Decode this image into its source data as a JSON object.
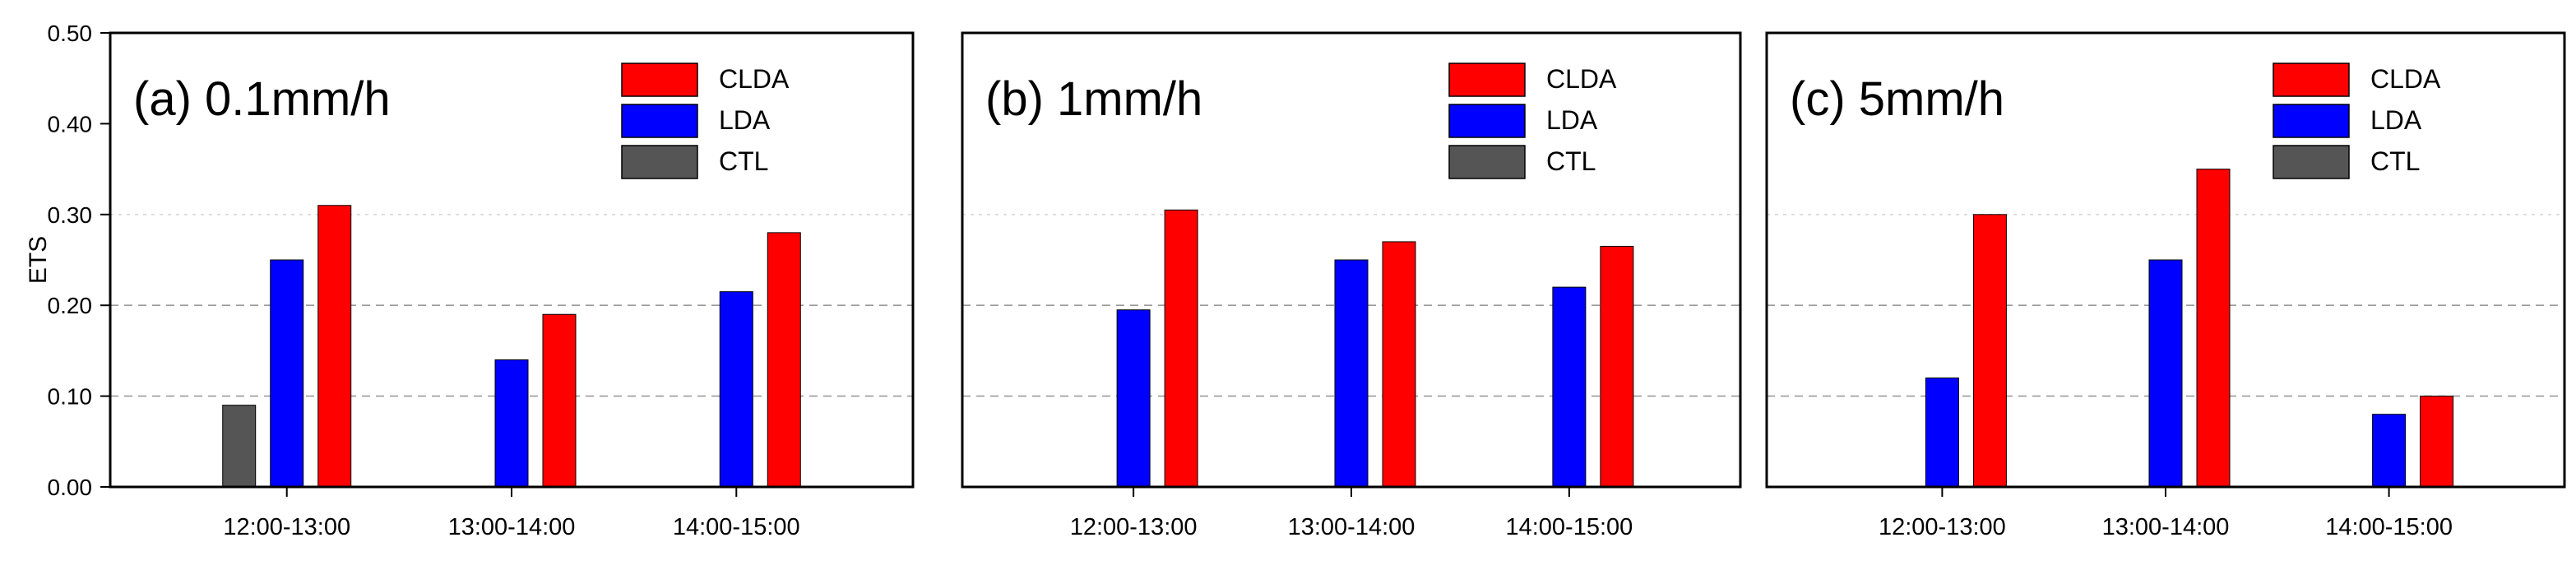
{
  "chart_data": [
    {
      "type": "bar",
      "panel_title": "(a) 0.1mm/h",
      "ylabel": "ETS",
      "ylim": [
        0,
        0.5
      ],
      "yticks": [
        "0.00",
        "0.10",
        "0.20",
        "0.30",
        "0.40",
        "0.50"
      ],
      "categories": [
        "12:00-13:00",
        "13:00-14:00",
        "14:00-15:00"
      ],
      "grid": "horizontal dashed",
      "legend_position": "top-right",
      "series": [
        {
          "name": "CTL",
          "color": "#555555",
          "values": [
            0.09,
            null,
            null
          ]
        },
        {
          "name": "LDA",
          "color": "#0000ff",
          "values": [
            0.25,
            0.14,
            0.215
          ]
        },
        {
          "name": "CLDA",
          "color": "#ff0000",
          "values": [
            0.31,
            0.19,
            0.28
          ]
        }
      ],
      "legend": [
        "CLDA",
        "LDA",
        "CTL"
      ]
    },
    {
      "type": "bar",
      "panel_title": "(b) 1mm/h",
      "ylim": [
        0,
        0.5
      ],
      "categories": [
        "12:00-13:00",
        "13:00-14:00",
        "14:00-15:00"
      ],
      "grid": "horizontal dashed",
      "legend_position": "top-right",
      "series": [
        {
          "name": "CTL",
          "color": "#555555",
          "values": [
            null,
            null,
            null
          ]
        },
        {
          "name": "LDA",
          "color": "#0000ff",
          "values": [
            0.195,
            0.25,
            0.22
          ]
        },
        {
          "name": "CLDA",
          "color": "#ff0000",
          "values": [
            0.305,
            0.27,
            0.265
          ]
        }
      ],
      "legend": [
        "CLDA",
        "LDA",
        "CTL"
      ]
    },
    {
      "type": "bar",
      "panel_title": "(c) 5mm/h",
      "ylim": [
        0,
        0.5
      ],
      "categories": [
        "12:00-13:00",
        "13:00-14:00",
        "14:00-15:00"
      ],
      "grid": "horizontal dashed",
      "legend_position": "top-right",
      "series": [
        {
          "name": "CTL",
          "color": "#555555",
          "values": [
            null,
            null,
            null
          ]
        },
        {
          "name": "LDA",
          "color": "#0000ff",
          "values": [
            0.12,
            0.25,
            0.08
          ]
        },
        {
          "name": "CLDA",
          "color": "#ff0000",
          "values": [
            0.3,
            0.35,
            0.1
          ]
        }
      ],
      "legend": [
        "CLDA",
        "LDA",
        "CTL"
      ]
    }
  ]
}
